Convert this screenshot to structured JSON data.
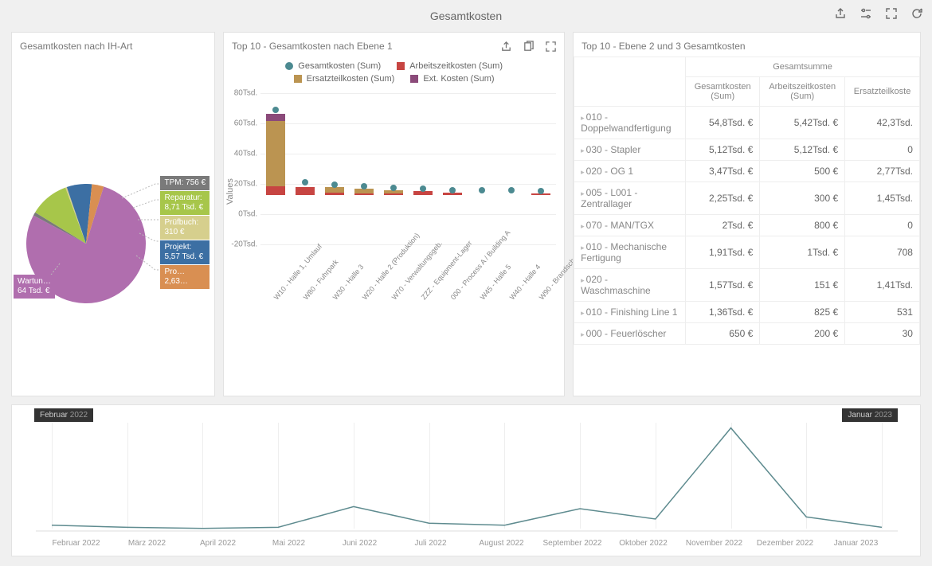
{
  "header": {
    "title": "Gesamtkosten"
  },
  "pie_panel": {
    "title": "Gesamtkosten nach IH-Art",
    "type": "pie",
    "slices": [
      {
        "name": "Wartung",
        "label_line1": "Wartun…",
        "label_line2": "64 Tsd. €",
        "value": 64000,
        "color": "#b06eae"
      },
      {
        "name": "TPM",
        "label_line1": "TPM: 756 €",
        "label_line2": "",
        "value": 756,
        "color": "#7a7a7a"
      },
      {
        "name": "Reparatur",
        "label_line1": "Reparatur:",
        "label_line2": "8,71 Tsd. €",
        "value": 8710,
        "color": "#a7c64a"
      },
      {
        "name": "Prüfbuch",
        "label_line1": "Prüfbuch:",
        "label_line2": "310 €",
        "value": 310,
        "color": "#d6cf8d"
      },
      {
        "name": "Projekt",
        "label_line1": "Projekt:",
        "label_line2": "5,57 Tsd. €",
        "value": 5570,
        "color": "#3c6fa3"
      },
      {
        "name": "Pro",
        "label_line1": "Pro…",
        "label_line2": "2,63…",
        "value": 2630,
        "color": "#d98f52"
      }
    ],
    "left_label": {
      "line1": "Wartun…",
      "line2": "64 Tsd. €",
      "bg": "#b06eae"
    },
    "right_labels": [
      {
        "line1": "TPM: 756 €",
        "line2": "",
        "bg": "#7a7a7a"
      },
      {
        "line1": "Reparatur:",
        "line2": "8,71 Tsd. €",
        "bg": "#a7c64a"
      },
      {
        "line1": "Prüfbuch:",
        "line2": "310 €",
        "bg": "#d6cf8d"
      },
      {
        "line1": "Projekt:",
        "line2": "5,57 Tsd. €",
        "bg": "#3c6fa3"
      },
      {
        "line1": "Pro…",
        "line2": "2,63…",
        "bg": "#d98f52"
      }
    ],
    "background": "#ffffff"
  },
  "bar_panel": {
    "title": "Top 10 - Gesamtkosten nach Ebene 1",
    "type": "bar-stacked-with-marker",
    "legend": [
      {
        "label": "Gesamtkosten (Sum)",
        "color": "#4c8a91",
        "shape": "circle"
      },
      {
        "label": "Arbeitszeitkosten (Sum)",
        "color": "#c74542",
        "shape": "square"
      },
      {
        "label": "Ersatzteilkosten (Sum)",
        "color": "#bb9451",
        "shape": "square"
      },
      {
        "label": "Ext. Kosten (Sum)",
        "color": "#8b4a7a",
        "shape": "square"
      }
    ],
    "yaxis": {
      "title": "Values",
      "ticks": [
        "-20Tsd.",
        "0Tsd.",
        "20Tsd.",
        "40Tsd.",
        "60Tsd.",
        "80Tsd."
      ],
      "tick_vals": [
        -20,
        0,
        20,
        40,
        60,
        80
      ],
      "ylim": [
        -20,
        80
      ]
    },
    "categories": [
      "W10 - Halle 1, Umlauf",
      "W80 - Fuhrpark",
      "W30 - Halle 3",
      "W20 - Halle 2 (Produktion)",
      "W70 - Verwaltungsgeb.",
      "ZZZ - Equipment-Lager",
      "000 - Process A / Building A",
      "W45 - Halle 5",
      "W40 - Halle 4",
      "W90 - Brandschutz"
    ],
    "stacks_colors": {
      "arbeitszeit": "#c74542",
      "ersatzteil": "#bb9451",
      "ext": "#8b4a7a"
    },
    "marker_color": "#4c8a91",
    "bars": [
      {
        "arbeitszeit": 7,
        "ersatzteil": 51,
        "ext": 6,
        "gesamt": 65
      },
      {
        "arbeitszeit": 6,
        "ersatzteil": 0,
        "ext": 0,
        "gesamt": 8
      },
      {
        "arbeitszeit": 2,
        "ersatzteil": 4,
        "ext": 0,
        "gesamt": 6
      },
      {
        "arbeitszeit": 1,
        "ersatzteil": 4,
        "ext": 0,
        "gesamt": 5
      },
      {
        "arbeitszeit": 1,
        "ersatzteil": 3,
        "ext": 0,
        "gesamt": 4
      },
      {
        "arbeitszeit": 3,
        "ersatzteil": 0,
        "ext": 0,
        "gesamt": 3
      },
      {
        "arbeitszeit": 2,
        "ersatzteil": 0,
        "ext": 0,
        "gesamt": 2
      },
      {
        "arbeitszeit": 0,
        "ersatzteil": 0,
        "ext": 0,
        "gesamt": 2
      },
      {
        "arbeitszeit": 0,
        "ersatzteil": 0,
        "ext": 0,
        "gesamt": 2
      },
      {
        "arbeitszeit": 1,
        "ersatzteil": 0,
        "ext": 0,
        "gesamt": 1
      }
    ],
    "grid_color": "#eeeeee",
    "background": "#ffffff"
  },
  "table_panel": {
    "title": "Top 10 - Ebene 2 und 3 Gesamtkosten",
    "supercolumn": "Gesamtsumme",
    "columns": [
      "Gesamtkosten (Sum)",
      "Arbeitszeitkosten (Sum)",
      "Ersatzteilkosten (Sum)"
    ],
    "columns_short": [
      "Gesamtkosten\n(Sum)",
      "Arbeitszeitkosten\n(Sum)",
      "Ersatzteilkoste"
    ],
    "rows": [
      {
        "label": "010 - Doppelwandfertigung",
        "c1": "54,8Tsd. €",
        "c2": "5,42Tsd. €",
        "c3": "42,3Tsd."
      },
      {
        "label": "030 - Stapler",
        "c1": "5,12Tsd. €",
        "c2": "5,12Tsd. €",
        "c3": "0"
      },
      {
        "label": "020 - OG 1",
        "c1": "3,47Tsd. €",
        "c2": "500 €",
        "c3": "2,77Tsd."
      },
      {
        "label": "005 - L001 - Zentrallager",
        "c1": "2,25Tsd. €",
        "c2": "300 €",
        "c3": "1,45Tsd."
      },
      {
        "label": "070 - MAN/TGX",
        "c1": "2Tsd. €",
        "c2": "800 €",
        "c3": "0"
      },
      {
        "label": "010 - Mechanische Fertigung",
        "c1": "1,91Tsd. €",
        "c2": "1Tsd. €",
        "c3": "708"
      },
      {
        "label": "020 - Waschmaschine",
        "c1": "1,57Tsd. €",
        "c2": "151 €",
        "c3": "1,41Tsd."
      },
      {
        "label": "010 - Finishing Line 1",
        "c1": "1,36Tsd. €",
        "c2": "825 €",
        "c3": "531"
      },
      {
        "label": "000 - Feuerlöscher",
        "c1": "650 €",
        "c2": "200 €",
        "c3": "30"
      }
    ],
    "border_color": "#eeeeee"
  },
  "timeline_panel": {
    "type": "line",
    "start_badge": {
      "month": "Februar",
      "year": "2022"
    },
    "end_badge": {
      "month": "Januar",
      "year": "2023"
    },
    "line_color": "#5e8b8f",
    "ticks": [
      "Februar 2022",
      "März 2022",
      "April 2022",
      "Mai 2022",
      "Juni 2022",
      "Juli 2022",
      "August 2022",
      "September 2022",
      "Oktober 2022",
      "November 2022",
      "Dezember 2022",
      "Januar 2023"
    ],
    "values": [
      4,
      2,
      1,
      2,
      22,
      6,
      4,
      20,
      10,
      98,
      12,
      2
    ],
    "ylim": [
      0,
      100
    ],
    "grid_color": "#eeeeee",
    "background": "#ffffff"
  }
}
